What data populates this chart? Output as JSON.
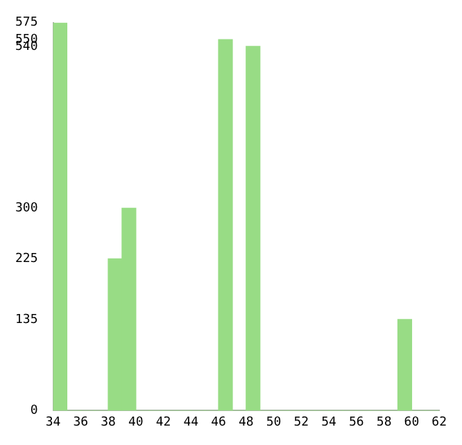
{
  "chart_data": {
    "type": "histogram",
    "bins": [
      34,
      35,
      36,
      37,
      38,
      39,
      40,
      41,
      42,
      43,
      44,
      45,
      46,
      47,
      48,
      49,
      50,
      51,
      52,
      53,
      54,
      55,
      56,
      57,
      58,
      59,
      60,
      61,
      62
    ],
    "values": [
      575,
      0,
      0,
      0,
      225,
      300,
      0,
      0,
      0,
      0,
      0,
      0,
      550,
      0,
      540,
      0,
      0,
      0,
      0,
      0,
      0,
      0,
      0,
      0,
      0,
      135,
      0,
      0
    ],
    "color": "#98dc85",
    "xlim": [
      34,
      62
    ],
    "xticks": [
      34,
      36,
      38,
      40,
      42,
      44,
      46,
      48,
      50,
      52,
      54,
      56,
      58,
      60,
      62
    ],
    "ylim": [
      0,
      575
    ],
    "yticks": [
      0,
      135,
      225,
      300,
      540,
      550,
      575
    ],
    "grid": false,
    "legend": false
  }
}
